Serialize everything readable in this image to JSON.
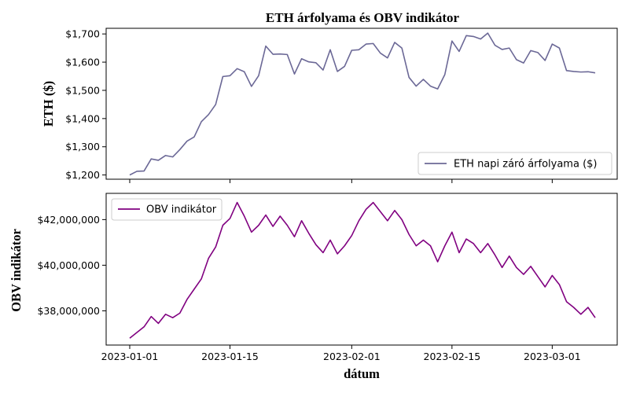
{
  "title": "ETH árfolyama és OBV indikátor",
  "xlabel": "dátum",
  "x_ticks": [
    "2023-01-01",
    "2023-01-15",
    "2023-02-01",
    "2023-02-15",
    "2023-03-01"
  ],
  "chart_data": [
    {
      "type": "line",
      "title": "ETH árfolyama és OBV indikátor",
      "ylabel": "ETH ($)",
      "xlabel": "",
      "ylim": [
        1185,
        1720
      ],
      "yticks": [
        "$1,200",
        "$1,300",
        "$1,400",
        "$1,500",
        "$1,600",
        "$1,700"
      ],
      "ytick_values": [
        1200,
        1300,
        1400,
        1500,
        1600,
        1700
      ],
      "legend": "lower right",
      "series": [
        {
          "name": "ETH napi záró árfolyama ($)",
          "color": "#6b6896",
          "x_start": "2023-01-01",
          "values": [
            1200,
            1213,
            1214,
            1257,
            1252,
            1269,
            1264,
            1290,
            1320,
            1335,
            1389,
            1414,
            1450,
            1549,
            1552,
            1577,
            1566,
            1514,
            1552,
            1657,
            1628,
            1629,
            1627,
            1558,
            1612,
            1601,
            1598,
            1572,
            1644,
            1567,
            1585,
            1642,
            1644,
            1664,
            1666,
            1632,
            1615,
            1670,
            1650,
            1546,
            1515,
            1539,
            1515,
            1505,
            1556,
            1675,
            1638,
            1694,
            1691,
            1682,
            1703,
            1660,
            1645,
            1650,
            1609,
            1597,
            1641,
            1634,
            1606,
            1664,
            1650,
            1570,
            1567,
            1565,
            1566,
            1562
          ]
        }
      ]
    },
    {
      "type": "line",
      "ylabel": "OBV indikátor",
      "xlabel": "dátum",
      "ylim": [
        36500000,
        43150000
      ],
      "yticks": [
        "$38,000,000",
        "$40,000,000",
        "$42,000,000"
      ],
      "ytick_values": [
        38000000,
        40000000,
        42000000
      ],
      "legend": "upper left",
      "series": [
        {
          "name": "OBV indikátor",
          "color": "#800080",
          "x_start": "2023-01-01",
          "values": [
            36800000,
            37050000,
            37300000,
            37750000,
            37450000,
            37850000,
            37700000,
            37900000,
            38500000,
            38950000,
            39400000,
            40300000,
            40800000,
            41750000,
            42050000,
            42750000,
            42150000,
            41450000,
            41750000,
            42200000,
            41700000,
            42150000,
            41750000,
            41250000,
            41950000,
            41400000,
            40900000,
            40550000,
            41100000,
            40500000,
            40850000,
            41300000,
            41950000,
            42450000,
            42750000,
            42350000,
            41950000,
            42400000,
            42000000,
            41350000,
            40850000,
            41100000,
            40850000,
            40150000,
            40850000,
            41450000,
            40550000,
            41150000,
            40950000,
            40550000,
            40950000,
            40450000,
            39900000,
            40400000,
            39900000,
            39600000,
            39950000,
            39500000,
            39050000,
            39550000,
            39150000,
            38400000,
            38150000,
            37850000,
            38150000,
            37700000
          ]
        }
      ]
    }
  ]
}
